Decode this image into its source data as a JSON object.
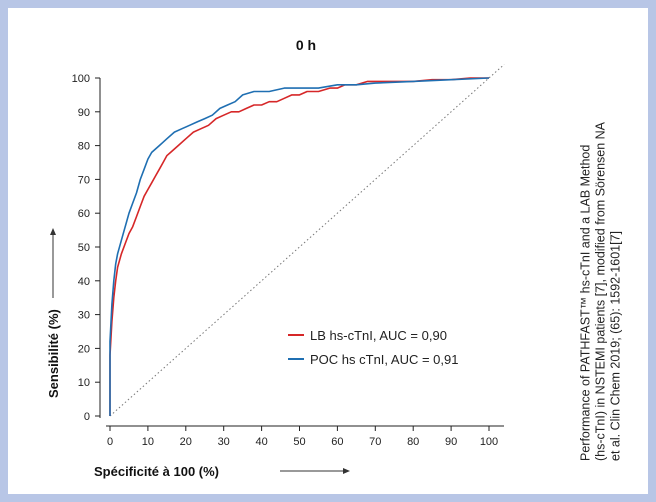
{
  "chart_data": {
    "type": "line",
    "title": "0 h",
    "xlabel": "Spécificité à 100 (%)",
    "ylabel": "Sensibilité (%)",
    "xlim": [
      0,
      100
    ],
    "ylim": [
      0,
      100
    ],
    "x_ticks": [
      0,
      10,
      20,
      30,
      40,
      50,
      60,
      70,
      80,
      90,
      100
    ],
    "y_ticks": [
      0,
      10,
      20,
      30,
      40,
      50,
      60,
      70,
      80,
      90,
      100
    ],
    "reference_line": {
      "x": [
        0,
        100
      ],
      "y": [
        0,
        100
      ],
      "style": "dotted"
    },
    "legend_position": "lower-right",
    "series": [
      {
        "name": "LB hs-cTnI, AUC = 0,90",
        "color": "#d62728",
        "x": [
          0,
          0,
          0.5,
          1,
          1.5,
          2,
          3,
          4,
          5,
          6,
          7,
          8,
          9,
          10,
          11,
          12,
          13,
          14,
          15,
          16,
          17,
          18,
          20,
          22,
          24,
          26,
          28,
          30,
          32,
          34,
          36,
          38,
          40,
          42,
          44,
          46,
          48,
          50,
          52,
          55,
          58,
          60,
          62,
          65,
          68,
          70,
          75,
          80,
          85,
          90,
          95,
          100
        ],
        "y": [
          0,
          18,
          28,
          35,
          40,
          44,
          48,
          51,
          54,
          56,
          59,
          62,
          65,
          67,
          69,
          71,
          73,
          75,
          77,
          78,
          79,
          80,
          82,
          84,
          85,
          86,
          88,
          89,
          90,
          90,
          91,
          92,
          92,
          93,
          93,
          94,
          95,
          95,
          96,
          96,
          97,
          97,
          98,
          98,
          99,
          99,
          99,
          99,
          99.5,
          99.5,
          100,
          100
        ]
      },
      {
        "name": "POC hs cTnI, AUC = 0,91",
        "color": "#1f6fb2",
        "x": [
          0,
          0,
          0.5,
          1,
          1.5,
          2,
          3,
          4,
          5,
          6,
          7,
          8,
          9,
          10,
          11,
          12,
          13,
          14,
          15,
          17,
          19,
          21,
          23,
          25,
          27,
          29,
          31,
          33,
          35,
          38,
          42,
          46,
          50,
          55,
          60,
          65,
          70,
          80,
          90,
          100
        ],
        "y": [
          0,
          22,
          33,
          40,
          45,
          48,
          52,
          56,
          60,
          63,
          66,
          70,
          73,
          76,
          78,
          79,
          80,
          81,
          82,
          84,
          85,
          86,
          87,
          88,
          89,
          91,
          92,
          93,
          95,
          96,
          96,
          97,
          97,
          97,
          98,
          98,
          98.5,
          99,
          99.5,
          100
        ]
      }
    ]
  },
  "caption_lines": [
    "Performance of PATHFAST™ hs-cTnI and a LAB Method",
    "(hs-cTnI) in NSTEMI patients [7], modified from Sörensen NA",
    "et al. Clin Chem 2019; (65): 1592-1601[7]"
  ]
}
